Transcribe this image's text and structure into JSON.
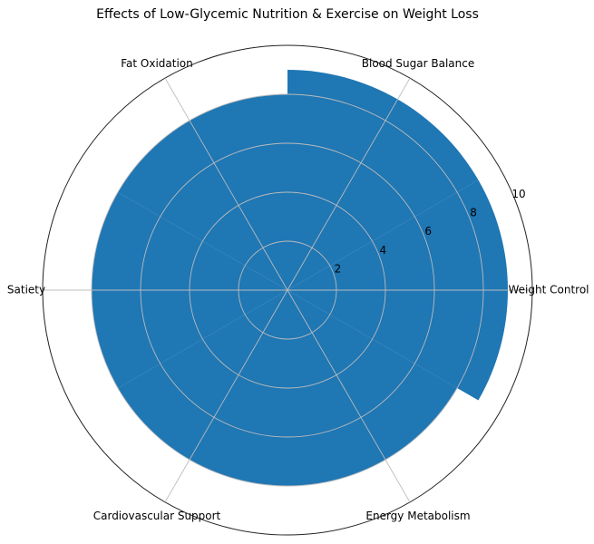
{
  "chart_data": {
    "type": "polar-bar",
    "title": "Effects of Low-Glycemic Nutrition & Exercise on Weight Loss",
    "categories": [
      "Weight Control",
      "Blood Sugar Balance",
      "Fat Oxidation",
      "Satiety",
      "Cardiovascular Support",
      "Energy Metabolism"
    ],
    "values": [
      9,
      9,
      8,
      8,
      8,
      8
    ],
    "color": "#1f77b4",
    "rlim": [
      0,
      10
    ],
    "rticks": [
      2,
      4,
      6,
      8,
      10
    ],
    "grid": true
  }
}
